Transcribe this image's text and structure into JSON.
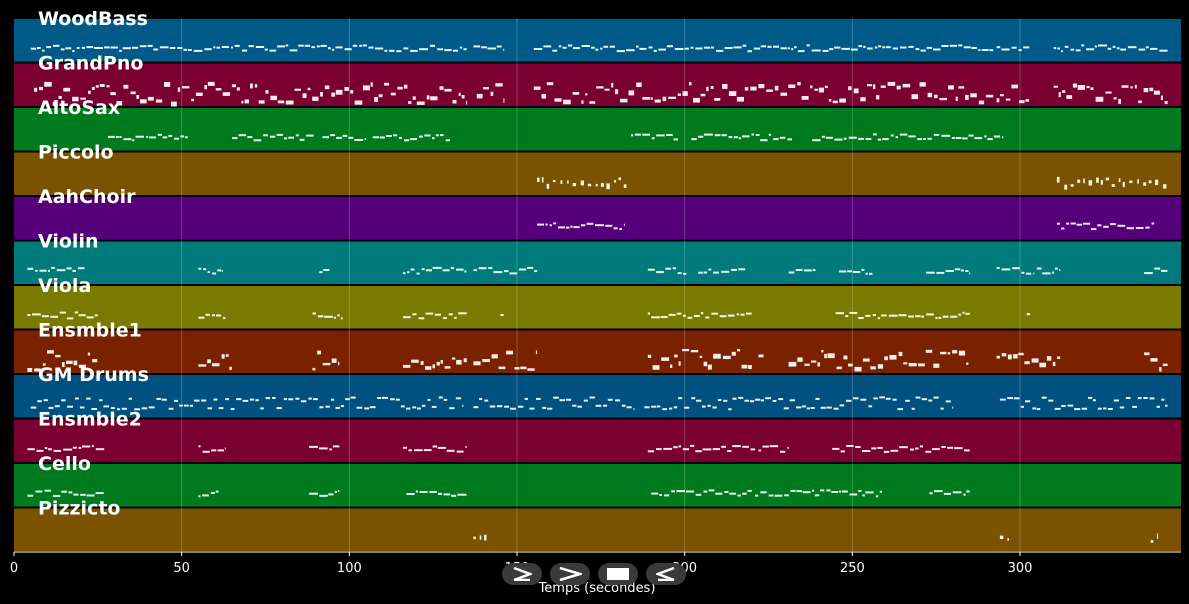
{
  "viewer": {
    "background": "#000000",
    "grid": true,
    "x_axis": {
      "label": "Temps (secondes)",
      "range": [
        0,
        348
      ],
      "ticks": [
        0,
        50,
        100,
        150,
        200,
        250,
        300
      ],
      "tick_labels": [
        "0",
        "50",
        "100",
        "150",
        "200",
        "250",
        "300"
      ]
    },
    "tracks": [
      {
        "name": "WoodBass",
        "color": "#005a88",
        "segments": [
          [
            5,
            135
          ],
          [
            137,
            146
          ],
          [
            155,
            292
          ],
          [
            293,
            303
          ],
          [
            310,
            344
          ]
        ],
        "style": "line"
      },
      {
        "name": "GrandPno",
        "color": "#7a0031",
        "segments": [
          [
            6,
            135
          ],
          [
            138,
            146
          ],
          [
            155,
            292
          ],
          [
            293,
            303
          ],
          [
            310,
            344
          ]
        ],
        "style": "dense"
      },
      {
        "name": "AltoSax",
        "color": "#007a1e",
        "segments": [
          [
            28,
            52
          ],
          [
            65,
            90
          ],
          [
            92,
            105
          ],
          [
            107,
            130
          ],
          [
            184,
            198
          ],
          [
            202,
            232
          ],
          [
            238,
            295
          ]
        ],
        "style": "line"
      },
      {
        "name": "Piccolo",
        "color": "#7a5200",
        "segments": [
          [
            156,
            183
          ],
          [
            311,
            344
          ]
        ],
        "style": "sparse"
      },
      {
        "name": "AahChoir",
        "color": "#55007a",
        "segments": [
          [
            156,
            182
          ],
          [
            311,
            340
          ]
        ],
        "style": "line"
      },
      {
        "name": "Violin",
        "color": "#007a7a",
        "segments": [
          [
            4,
            21
          ],
          [
            55,
            62
          ],
          [
            91,
            94
          ],
          [
            116,
            135
          ],
          [
            137,
            156
          ],
          [
            189,
            201
          ],
          [
            204,
            218
          ],
          [
            231,
            239
          ],
          [
            246,
            256
          ],
          [
            272,
            285
          ],
          [
            293,
            304
          ],
          [
            305,
            312
          ],
          [
            337,
            344
          ]
        ],
        "style": "line"
      },
      {
        "name": "Viola",
        "color": "#7a7a00",
        "segments": [
          [
            4,
            25
          ],
          [
            55,
            63
          ],
          [
            89,
            98
          ],
          [
            116,
            135
          ],
          [
            145,
            146
          ],
          [
            189,
            220
          ],
          [
            245,
            285
          ],
          [
            302,
            303
          ]
        ],
        "style": "line"
      },
      {
        "name": "Ensmble1",
        "color": "#7a2200",
        "segments": [
          [
            4,
            25
          ],
          [
            55,
            65
          ],
          [
            89,
            97
          ],
          [
            116,
            135
          ],
          [
            137,
            156
          ],
          [
            189,
            220
          ],
          [
            222,
            224
          ],
          [
            231,
            285
          ],
          [
            293,
            312
          ],
          [
            337,
            344
          ]
        ],
        "style": "dense"
      },
      {
        "name": "GM Drums",
        "color": "#005080",
        "segments": [
          [
            5,
            134
          ],
          [
            137,
            185
          ],
          [
            188,
            280
          ],
          [
            294,
            344
          ]
        ],
        "style": "drums"
      },
      {
        "name": "Ensmble2",
        "color": "#7a0031",
        "segments": [
          [
            4,
            27
          ],
          [
            55,
            63
          ],
          [
            88,
            97
          ],
          [
            116,
            135
          ],
          [
            189,
            221
          ],
          [
            222,
            231
          ],
          [
            244,
            285
          ]
        ],
        "style": "line"
      },
      {
        "name": "Cello",
        "color": "#007a1e",
        "segments": [
          [
            4,
            27
          ],
          [
            55,
            61
          ],
          [
            88,
            97
          ],
          [
            117,
            135
          ],
          [
            190,
            220
          ],
          [
            221,
            259
          ],
          [
            273,
            285
          ]
        ],
        "style": "line"
      },
      {
        "name": "Pizzicto",
        "color": "#7a5200",
        "segments": [
          [
            137,
            141
          ],
          [
            294,
            298
          ],
          [
            339,
            341
          ]
        ],
        "style": "sparse"
      }
    ]
  },
  "transport": {
    "play_icon": "play-icon",
    "forward_icon": "fast-forward-icon",
    "stop_icon": "stop-icon",
    "back_icon": "rewind-icon"
  }
}
